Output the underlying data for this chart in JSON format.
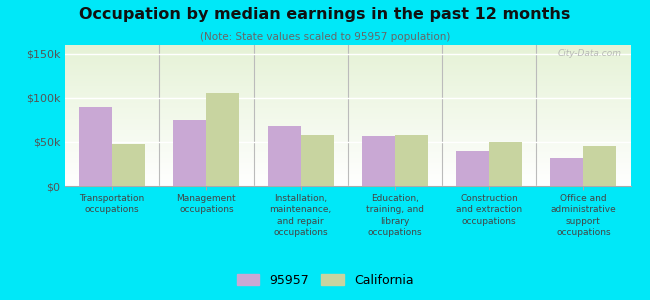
{
  "title": "Occupation by median earnings in the past 12 months",
  "subtitle": "(Note: State values scaled to 95957 population)",
  "categories": [
    "Transportation\noccupations",
    "Management\noccupations",
    "Installation,\nmaintenance,\nand repair\noccupations",
    "Education,\ntraining, and\nlibrary\noccupations",
    "Construction\nand extraction\noccupations",
    "Office and\nadministrative\nsupport\noccupations"
  ],
  "values_local": [
    90000,
    75000,
    68000,
    57000,
    40000,
    32000
  ],
  "values_state": [
    48000,
    105000,
    58000,
    58000,
    50000,
    45000
  ],
  "color_local": "#c9a8d4",
  "color_state": "#c8d4a0",
  "background_outer": "#00e8f8",
  "ylim": [
    0,
    160000
  ],
  "yticks": [
    0,
    50000,
    100000,
    150000
  ],
  "ytick_labels": [
    "$0",
    "$50k",
    "$100k",
    "$150k"
  ],
  "legend_local": "95957",
  "legend_state": "California",
  "watermark": "City-Data.com",
  "bar_width": 0.35
}
